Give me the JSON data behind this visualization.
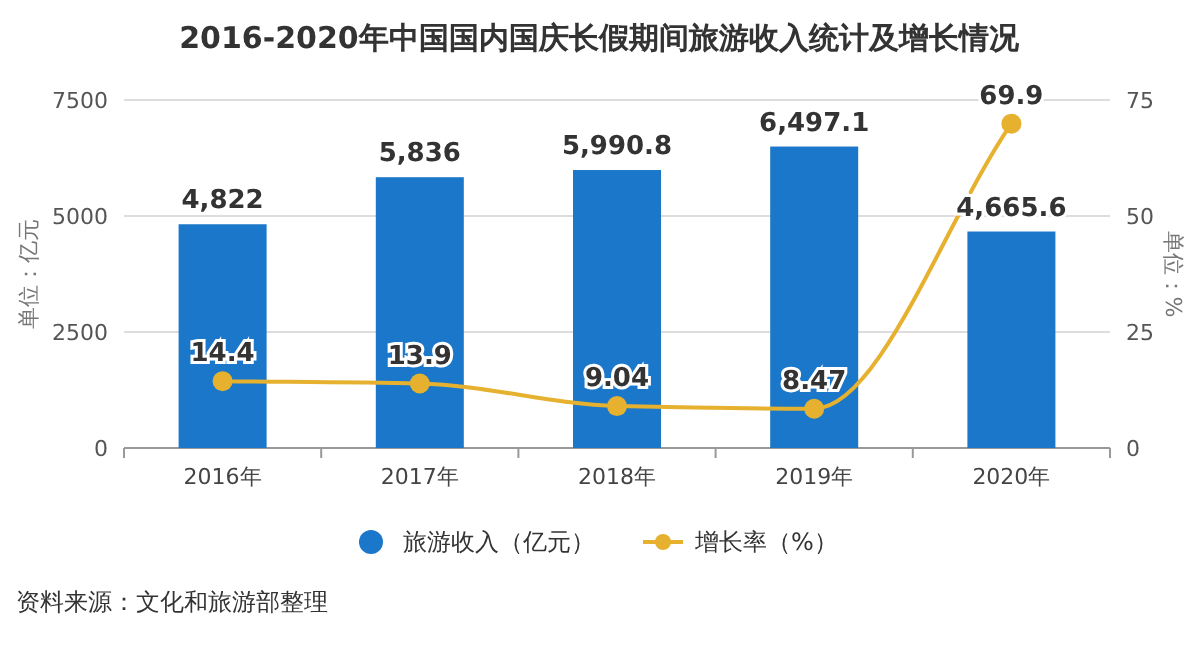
{
  "chart_data": {
    "type": "bar",
    "title": "2016-2020年中国国内国庆长假期间旅游收入统计及增长情况",
    "categories": [
      "2016年",
      "2017年",
      "2018年",
      "2019年",
      "2020年"
    ],
    "series": [
      {
        "name": "旅游收入（亿元）",
        "color": "#1a77c9",
        "values": [
          4822,
          5836,
          5990.8,
          6497.1,
          4665.6
        ],
        "value_labels": [
          "4,822",
          "5,836",
          "5,990.8",
          "6,497.1",
          "4,665.6"
        ]
      },
      {
        "name": "增长率（%）",
        "type": "line",
        "axis": "y2",
        "marker": "circle",
        "color": "#e6b12e",
        "values": [
          14.4,
          13.9,
          9.04,
          8.47,
          69.9
        ],
        "value_labels": [
          "14.4",
          "13.9",
          "9.04",
          "8.47",
          "69.9"
        ]
      }
    ],
    "ylim": [
      0,
      7500
    ],
    "yticks": [
      0,
      2500,
      5000,
      7500
    ],
    "y2lim": [
      0,
      75
    ],
    "y2ticks": [
      0,
      25,
      50,
      75
    ],
    "ylabel": "单位：亿元",
    "y2label": "单位：%",
    "grid": "y",
    "legend": "bottom",
    "annotations": [
      "资料来源：文化和旅游部整理"
    ]
  }
}
